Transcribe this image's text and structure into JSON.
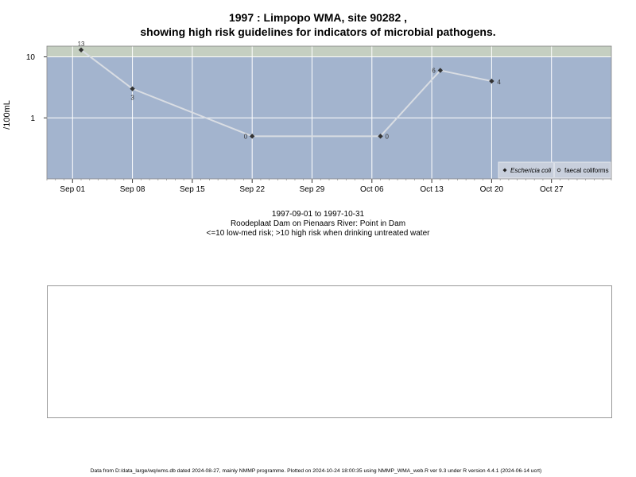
{
  "header": {
    "title_line1": "1997 : Limpopo WMA, site 90282 ,",
    "title_line2": "showing high risk guidelines for indicators of microbial pathogens."
  },
  "chart_data": {
    "type": "line",
    "ylabel": "/100mL",
    "y_scale": "log",
    "ylim": [
      0.1,
      15
    ],
    "y_ticks": [
      {
        "value": 1,
        "label": "1"
      },
      {
        "value": 10,
        "label": "10"
      }
    ],
    "threshold": 10,
    "x_ticks": [
      {
        "date": "1997-09-01",
        "label": "Sep 01"
      },
      {
        "date": "1997-09-08",
        "label": "Sep 08"
      },
      {
        "date": "1997-09-15",
        "label": "Sep 15"
      },
      {
        "date": "1997-09-22",
        "label": "Sep 22"
      },
      {
        "date": "1997-09-29",
        "label": "Sep 29"
      },
      {
        "date": "1997-10-06",
        "label": "Oct 06"
      },
      {
        "date": "1997-10-13",
        "label": "Oct 13"
      },
      {
        "date": "1997-10-20",
        "label": "Oct 20"
      },
      {
        "date": "1997-10-27",
        "label": "Oct 27"
      }
    ],
    "xlim": [
      "1997-08-29",
      "1997-11-03"
    ],
    "series": [
      {
        "name": "Eschericia coli",
        "marker": "diamond",
        "points": [
          {
            "date": "1997-09-02",
            "value": 13,
            "label": "13"
          },
          {
            "date": "1997-09-08",
            "value": 3,
            "label": "3"
          },
          {
            "date": "1997-09-22",
            "value": 0.5,
            "label": "0"
          },
          {
            "date": "1997-10-07",
            "value": 0.5,
            "label": "0"
          },
          {
            "date": "1997-10-14",
            "value": 6,
            "label": "6"
          },
          {
            "date": "1997-10-20",
            "value": 4,
            "label": "4"
          }
        ]
      }
    ],
    "legend": {
      "position": "bottom-right",
      "entries": [
        {
          "label": "Eschericia coli",
          "marker": "diamond"
        },
        {
          "label": "faecal coliforms",
          "marker": "circle"
        }
      ]
    },
    "colors": {
      "low_risk_band": "#a3b4ce",
      "high_risk_band": "#c5cfc1",
      "line": "#d9dde3",
      "grid": "#ffffff",
      "marker": "#333333"
    }
  },
  "captions": {
    "line1": "1997-09-01 to 1997-10-31",
    "line2": "Roodeplaat Dam on Pienaars River: Point in Dam",
    "line3": "<=10 low-med risk; >10 high risk when drinking untreated water"
  },
  "footer": {
    "text": "Data from D:/data_large/wq/wms.db dated 2024-08-27, mainly NMMP programme. Plotted on 2024-10-24 18:00:35 using NMMP_WMA_web.R ver 9.3 under R version 4.4.1 (2024-06-14 ucrt)"
  }
}
